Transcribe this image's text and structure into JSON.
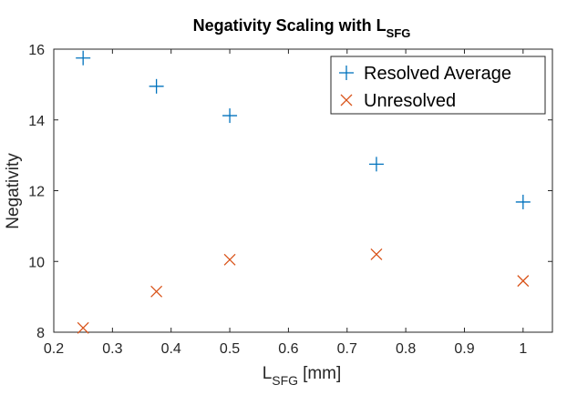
{
  "chart_data": {
    "type": "scatter",
    "title": "Negativity Scaling with L",
    "title_subscript": "SFG",
    "xlabel": "L",
    "xlabel_subscript": "SFG",
    "xlabel_unit": "[mm]",
    "ylabel": "Negativity",
    "xlim": [
      0.2,
      1.05
    ],
    "ylim": [
      8,
      16
    ],
    "xticks": [
      "0.2",
      "0.3",
      "0.4",
      "0.5",
      "0.6",
      "0.7",
      "0.8",
      "0.9",
      "1"
    ],
    "yticks": [
      "8",
      "10",
      "12",
      "14",
      "16"
    ],
    "grid": false,
    "legend_position": "top-right",
    "series": [
      {
        "name": "Resolved Average",
        "marker": "plus",
        "color": "#0072BD",
        "x": [
          0.25,
          0.375,
          0.5,
          0.75,
          1.0
        ],
        "y": [
          15.75,
          14.95,
          14.12,
          12.75,
          11.68
        ]
      },
      {
        "name": "Unresolved",
        "marker": "cross",
        "color": "#D95319",
        "x": [
          0.25,
          0.375,
          0.5,
          0.75,
          1.0
        ],
        "y": [
          8.12,
          9.15,
          10.05,
          10.2,
          9.45
        ]
      }
    ]
  }
}
